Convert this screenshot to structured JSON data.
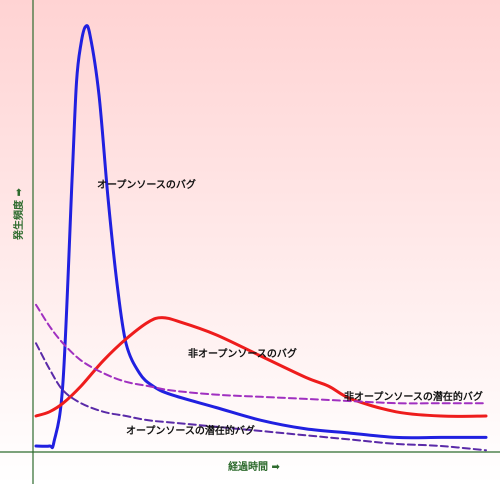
{
  "chart_data": {
    "type": "line",
    "title": "",
    "xlabel": "経過時間 ➡",
    "ylabel": "発生頻度 ➡",
    "xlim": [
      0,
      100
    ],
    "ylim": [
      0,
      100
    ],
    "grid": false,
    "background_gradient": [
      "#ffd3d3",
      "#ffffff"
    ],
    "axis_color": "#2e6b2e",
    "series": [
      {
        "name": "オープンソースのバグ",
        "color": "#2020e0",
        "dash": false,
        "x": [
          0,
          3,
          4,
          6,
          8,
          9,
          10,
          11,
          12,
          14,
          16,
          18,
          20,
          23,
          26,
          30,
          40,
          50,
          60,
          70,
          80,
          90,
          100
        ],
        "y": [
          0,
          0,
          1,
          15,
          62,
          85,
          94,
          98,
          96,
          82,
          58,
          38,
          24,
          17,
          14,
          12,
          9,
          6,
          4,
          3,
          2,
          2,
          2
        ]
      },
      {
        "name": "非オープンソースのバグ",
        "color": "#ee1c1c",
        "dash": false,
        "x": [
          0,
          3,
          6,
          10,
          15,
          20,
          25,
          28,
          32,
          40,
          50,
          60,
          65,
          70,
          80,
          90,
          100
        ],
        "y": [
          7,
          8,
          10,
          14,
          20,
          25,
          29,
          30,
          29,
          26,
          21,
          16,
          14,
          11,
          8,
          7,
          7
        ]
      },
      {
        "name": "非オープンソースの潜在的バグ",
        "color": "#a030c0",
        "dash": true,
        "x": [
          0,
          3,
          6,
          10,
          15,
          20,
          25,
          30,
          40,
          50,
          60,
          70,
          80,
          90,
          100
        ],
        "y": [
          33,
          28,
          24,
          20,
          17,
          15,
          14,
          13,
          12,
          11.5,
          11,
          10.5,
          10,
          10,
          10
        ]
      },
      {
        "name": "オープンソースの潜在的バグ",
        "color": "#5a2aa8",
        "dash": true,
        "x": [
          0,
          3,
          6,
          10,
          15,
          20,
          25,
          30,
          40,
          50,
          60,
          70,
          80,
          90,
          100
        ],
        "y": [
          24,
          18,
          13,
          10,
          8,
          7,
          6,
          5.5,
          4.5,
          3.5,
          2.5,
          1.5,
          0.5,
          0,
          -1
        ]
      }
    ]
  }
}
